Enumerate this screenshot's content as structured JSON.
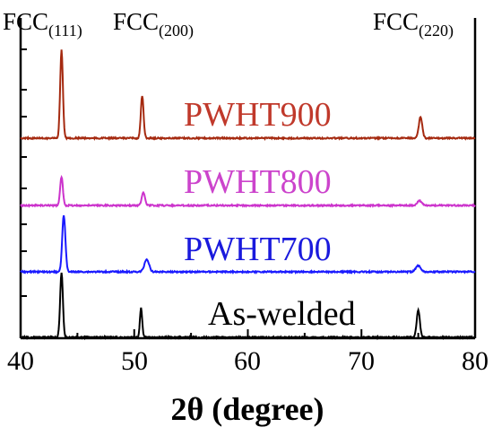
{
  "chart_data": {
    "type": "line",
    "title": "",
    "xlabel": "2θ (degree)",
    "ylabel": "",
    "xlim": [
      40,
      80
    ],
    "x_ticks": [
      "40",
      "50",
      "60",
      "70",
      "80"
    ],
    "grid": false,
    "legend": "inline labels on each trace",
    "annotations": [
      {
        "base": "FCC",
        "sub": "(111)",
        "x": 43.6
      },
      {
        "base": "FCC",
        "sub": "(200)",
        "x": 50.8
      },
      {
        "base": "FCC",
        "sub": "(220)",
        "x": 75.0
      }
    ],
    "series": [
      {
        "name": "PWHT900",
        "color": "#a52a10",
        "label_color": "#c0392b",
        "baseline": 0.0,
        "peaks": [
          {
            "x": 43.6,
            "height": 0.98,
            "width": 0.12
          },
          {
            "x": 50.7,
            "height": 0.47,
            "width": 0.12
          },
          {
            "x": 75.2,
            "height": 0.24,
            "width": 0.15
          }
        ]
      },
      {
        "name": "PWHT800",
        "color": "#cc33cc",
        "label_color": "#cc44cc",
        "baseline": 0.0,
        "peaks": [
          {
            "x": 43.6,
            "height": 0.32,
            "width": 0.12
          },
          {
            "x": 50.8,
            "height": 0.15,
            "width": 0.14
          },
          {
            "x": 75.1,
            "height": 0.05,
            "width": 0.2
          }
        ]
      },
      {
        "name": "PWHT700",
        "color": "#1a1aff",
        "label_color": "#1a1add",
        "baseline": 0.0,
        "peaks": [
          {
            "x": 43.8,
            "height": 0.63,
            "width": 0.14
          },
          {
            "x": 51.1,
            "height": 0.14,
            "width": 0.2
          },
          {
            "x": 75.0,
            "height": 0.07,
            "width": 0.22
          }
        ]
      },
      {
        "name": "As-welded",
        "color": "#000000",
        "label_color": "#000000",
        "baseline": 0.0,
        "peaks": [
          {
            "x": 43.6,
            "height": 1.0,
            "width": 0.12
          },
          {
            "x": 50.6,
            "height": 0.45,
            "width": 0.1
          },
          {
            "x": 75.0,
            "height": 0.42,
            "width": 0.14
          }
        ]
      }
    ]
  }
}
